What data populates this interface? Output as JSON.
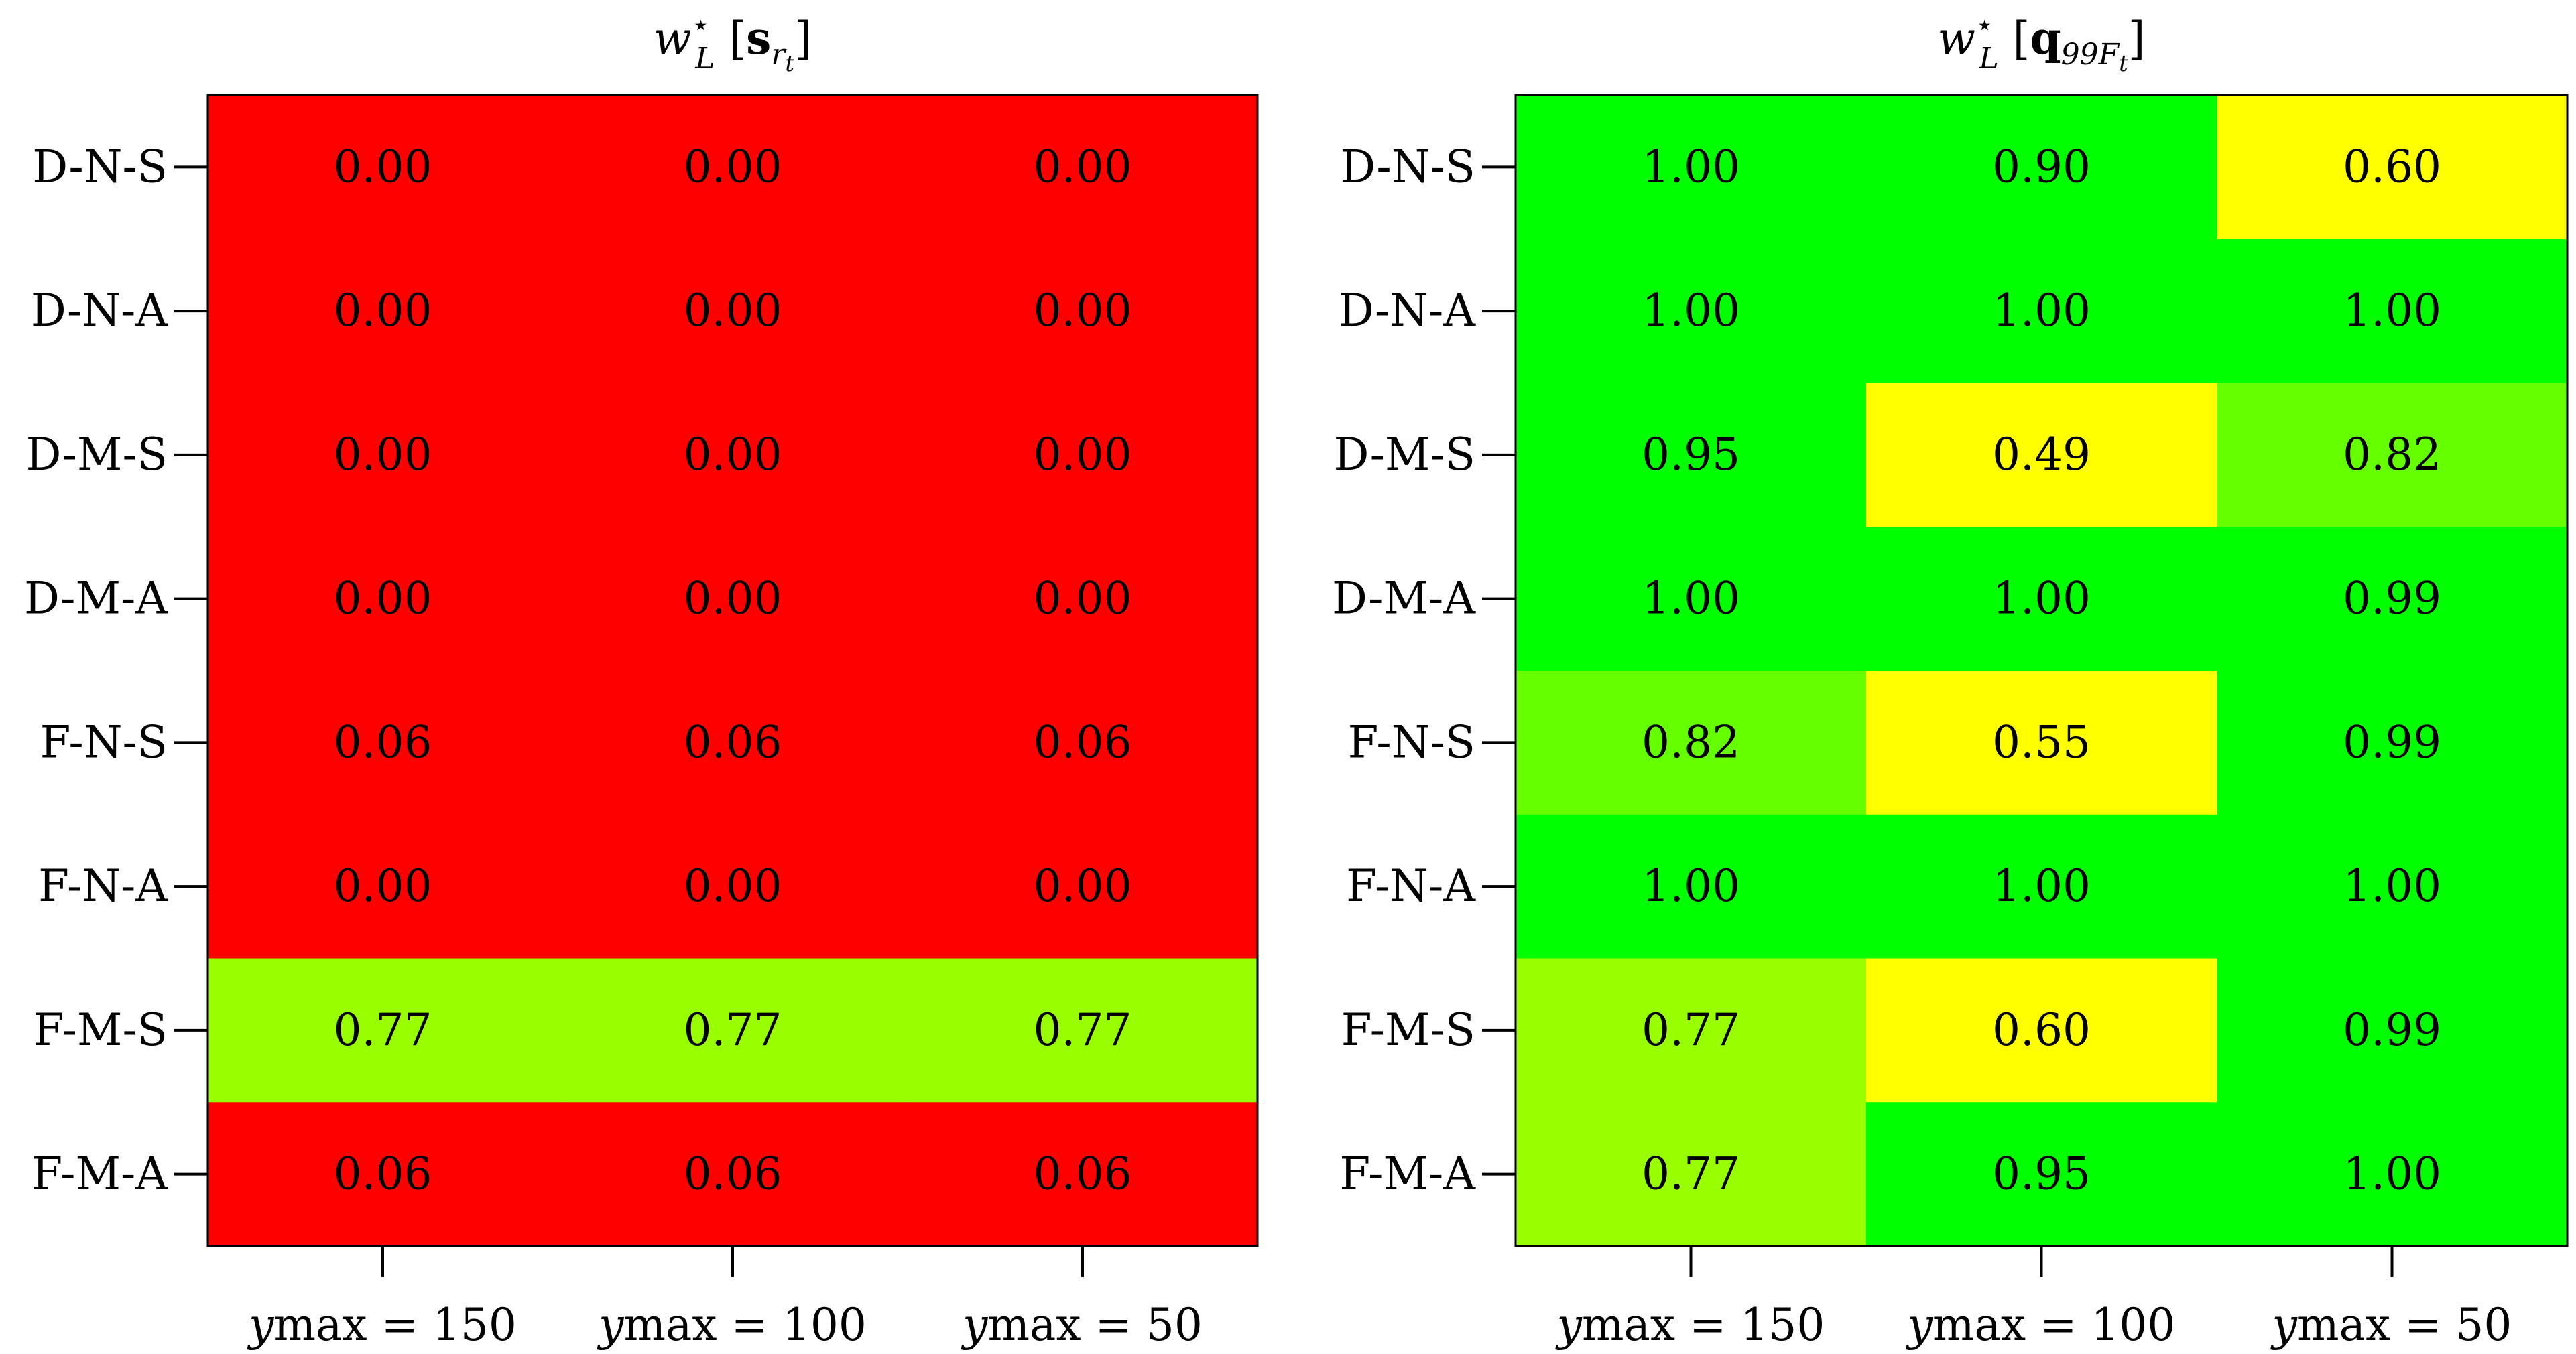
{
  "chart_data": [
    {
      "type": "heatmap",
      "title": {
        "base": "w",
        "sup": "⋆",
        "sub": "L",
        "arg_bold": "s",
        "arg_sub": "r",
        "arg_subsub": "t"
      },
      "row_labels": [
        "D-N-S",
        "D-N-A",
        "D-M-S",
        "D-M-A",
        "F-N-S",
        "F-N-A",
        "F-M-S",
        "F-M-A"
      ],
      "col_labels": [
        {
          "var": "y",
          "sub": "max",
          "eq": " = 150"
        },
        {
          "var": "y",
          "sub": "max",
          "eq": " = 100"
        },
        {
          "var": "y",
          "sub": "max",
          "eq": " = 50"
        }
      ],
      "values": [
        [
          0.0,
          0.0,
          0.0
        ],
        [
          0.0,
          0.0,
          0.0
        ],
        [
          0.0,
          0.0,
          0.0
        ],
        [
          0.0,
          0.0,
          0.0
        ],
        [
          0.06,
          0.06,
          0.06
        ],
        [
          0.0,
          0.0,
          0.0
        ],
        [
          0.77,
          0.77,
          0.77
        ],
        [
          0.06,
          0.06,
          0.06
        ]
      ],
      "colors": [
        [
          "#ff0000",
          "#ff0000",
          "#ff0000"
        ],
        [
          "#ff0000",
          "#ff0000",
          "#ff0000"
        ],
        [
          "#ff0000",
          "#ff0000",
          "#ff0000"
        ],
        [
          "#ff0000",
          "#ff0000",
          "#ff0000"
        ],
        [
          "#ff0000",
          "#ff0000",
          "#ff0000"
        ],
        [
          "#ff0000",
          "#ff0000",
          "#ff0000"
        ],
        [
          "#99ff00",
          "#99ff00",
          "#99ff00"
        ],
        [
          "#ff0000",
          "#ff0000",
          "#ff0000"
        ]
      ]
    },
    {
      "type": "heatmap",
      "title": {
        "base": "w",
        "sup": "⋆",
        "sub": "L",
        "arg_bold": "q",
        "arg_sub": "99F",
        "arg_subsub": "t"
      },
      "row_labels": [
        "D-N-S",
        "D-N-A",
        "D-M-S",
        "D-M-A",
        "F-N-S",
        "F-N-A",
        "F-M-S",
        "F-M-A"
      ],
      "col_labels": [
        {
          "var": "y",
          "sub": "max",
          "eq": " = 150"
        },
        {
          "var": "y",
          "sub": "max",
          "eq": " = 100"
        },
        {
          "var": "y",
          "sub": "max",
          "eq": " = 50"
        }
      ],
      "values": [
        [
          1.0,
          0.9,
          0.6
        ],
        [
          1.0,
          1.0,
          1.0
        ],
        [
          0.95,
          0.49,
          0.82
        ],
        [
          1.0,
          1.0,
          0.99
        ],
        [
          0.82,
          0.55,
          0.99
        ],
        [
          1.0,
          1.0,
          1.0
        ],
        [
          0.77,
          0.6,
          0.99
        ],
        [
          0.77,
          0.95,
          1.0
        ]
      ],
      "colors": [
        [
          "#00ff00",
          "#00ff00",
          "#ffff00"
        ],
        [
          "#00ff00",
          "#00ff00",
          "#00ff00"
        ],
        [
          "#00ff00",
          "#ffff00",
          "#66ff00"
        ],
        [
          "#00ff00",
          "#00ff00",
          "#00ff00"
        ],
        [
          "#66ff00",
          "#ffff00",
          "#00ff00"
        ],
        [
          "#00ff00",
          "#00ff00",
          "#00ff00"
        ],
        [
          "#99ff00",
          "#ffff00",
          "#00ff00"
        ],
        [
          "#99ff00",
          "#00ff00",
          "#00ff00"
        ]
      ]
    }
  ]
}
